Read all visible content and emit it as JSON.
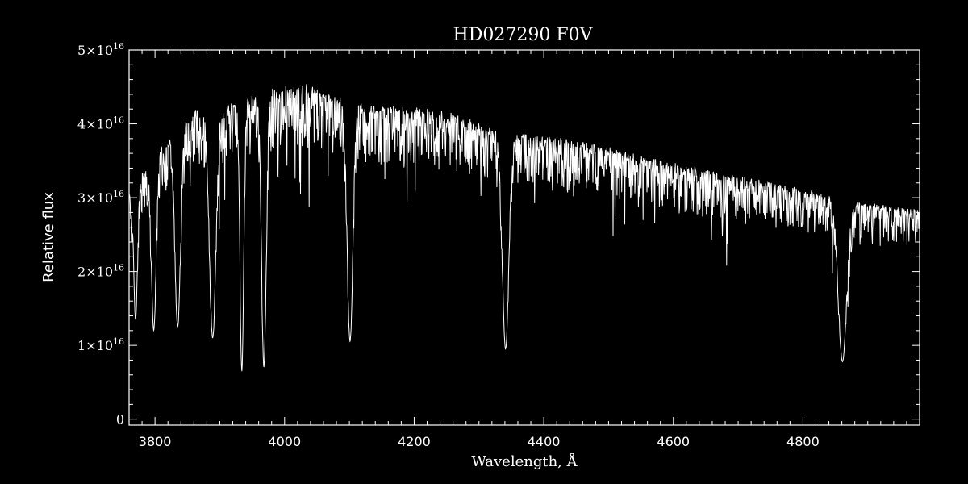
{
  "chart_data": {
    "type": "line",
    "title": "HD027290  F0V",
    "xlabel": "Wavelength, Å",
    "ylabel": "Relative flux",
    "xlim": [
      3760,
      4980
    ],
    "ylim": [
      -800000000000000.0,
      5e+16
    ],
    "x_ticks": [
      3800,
      4000,
      4200,
      4400,
      4600,
      4800
    ],
    "x_tick_labels": [
      "3800",
      "4000",
      "4200",
      "4400",
      "4600",
      "4800"
    ],
    "y_ticks": [
      0,
      1e+16,
      2e+16,
      3e+16,
      4e+16,
      5e+16
    ],
    "y_tick_labels": [
      {
        "mantissa": "0",
        "exponent": ""
      },
      {
        "mantissa": "1×10",
        "exponent": "16"
      },
      {
        "mantissa": "2×10",
        "exponent": "16"
      },
      {
        "mantissa": "3×10",
        "exponent": "16"
      },
      {
        "mantissa": "4×10",
        "exponent": "16"
      },
      {
        "mantissa": "5×10",
        "exponent": "16"
      }
    ],
    "grid": false,
    "colors": {
      "background": "#000000",
      "foreground": "#ffffff"
    },
    "series": [
      {
        "continuum": [
          [
            3760,
            3.1e+16
          ],
          [
            3800,
            3.6e+16
          ],
          [
            3860,
            4.2e+16
          ],
          [
            3920,
            4.3e+16
          ],
          [
            3980,
            4.5e+16
          ],
          [
            4030,
            4.55e+16
          ],
          [
            4080,
            4.4e+16
          ],
          [
            4140,
            4.25e+16
          ],
          [
            4200,
            4.25e+16
          ],
          [
            4260,
            4.15e+16
          ],
          [
            4320,
            3.95e+16
          ],
          [
            4380,
            3.85e+16
          ],
          [
            4440,
            3.8e+16
          ],
          [
            4500,
            3.7e+16
          ],
          [
            4560,
            3.55e+16
          ],
          [
            4620,
            3.45e+16
          ],
          [
            4700,
            3.3e+16
          ],
          [
            4760,
            3.2e+16
          ],
          [
            4820,
            3.1e+16
          ],
          [
            4880,
            2.95e+16
          ],
          [
            4940,
            2.9e+16
          ],
          [
            4980,
            2.85e+16
          ]
        ],
        "absorption_lines": [
          {
            "x": 3770,
            "y": 1.35e+16,
            "width": 4
          },
          {
            "x": 3798,
            "y": 1.2e+16,
            "width": 5
          },
          {
            "x": 3835,
            "y": 1.25e+16,
            "width": 6
          },
          {
            "x": 3889,
            "y": 1.1e+16,
            "width": 7
          },
          {
            "x": 3934,
            "y": 6500000000000000.0,
            "width": 4
          },
          {
            "x": 3968,
            "y": 7000000000000000.0,
            "width": 5
          },
          {
            "x": 4101,
            "y": 1.05e+16,
            "width": 6
          },
          {
            "x": 4341,
            "y": 9500000000000000.0,
            "width": 7
          },
          {
            "x": 4861,
            "y": 7800000000000000.0,
            "width": 9
          }
        ]
      }
    ]
  }
}
